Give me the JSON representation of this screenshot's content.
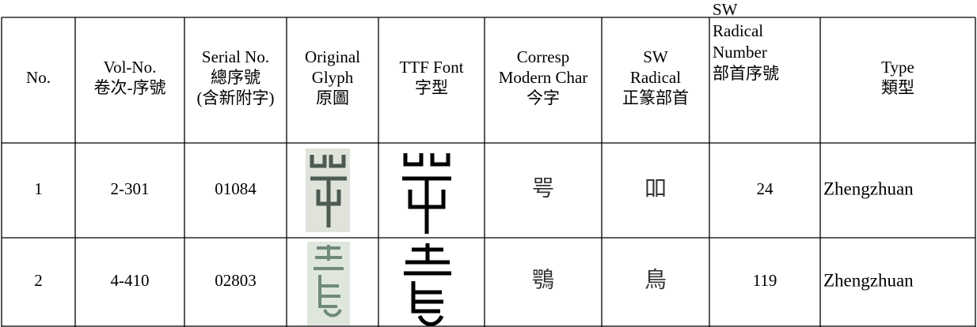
{
  "table": {
    "headers": [
      [
        "No."
      ],
      [
        "Vol-No.",
        "卷次-序號"
      ],
      [
        "Serial No.",
        "總序號",
        "(含新附字)"
      ],
      [
        "Original",
        "Glyph",
        "原圖"
      ],
      [
        "TTF Font",
        "字型"
      ],
      [
        "Corresp",
        "Modern Char",
        "今字"
      ],
      [
        "SW",
        "Radical",
        "正篆部首"
      ],
      [
        "SW",
        "Radical",
        "Number",
        "部首序號"
      ],
      [
        "Type",
        "類型"
      ]
    ],
    "rows": [
      {
        "no": "1",
        "vol": "2-301",
        "serial": "01084",
        "modern": "咢",
        "radical": "吅",
        "radical_number": "24",
        "type": "Zhengzhuan"
      },
      {
        "no": "2",
        "vol": "4-410",
        "serial": "02803",
        "modern": "鶚",
        "radical": "鳥",
        "radical_number": "119",
        "type": "Zhengzhuan"
      }
    ]
  }
}
